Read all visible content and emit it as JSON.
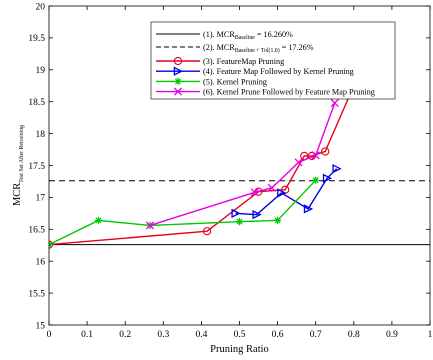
{
  "chart_data": {
    "type": "line",
    "title": "",
    "xlabel": "Pruning Ratio",
    "ylabel": "MCR",
    "ylabel_subscript": "Test Set After Retraining",
    "xlim": [
      0,
      1
    ],
    "ylim": [
      15,
      20
    ],
    "x_ticks": [
      "0",
      "0.1",
      "0.2",
      "0.3",
      "0.4",
      "0.5",
      "0.6",
      "0.7",
      "0.8",
      "0.9",
      "1"
    ],
    "y_ticks": [
      "15",
      "15.5",
      "16",
      "16.5",
      "17",
      "17.5",
      "18",
      "18.5",
      "19",
      "19.5",
      "20"
    ],
    "grid": false,
    "legend_position": "top-right",
    "reference_lines": [
      {
        "y": 16.26,
        "style": "solid",
        "color": "#000000",
        "legend_main": "(1). MCR",
        "legend_sub": "Baseline",
        "legend_tail": " = 16.260%"
      },
      {
        "y": 17.26,
        "style": "dashed",
        "color": "#000000",
        "legend_main": "(2). MCR",
        "legend_sub": "Baseline + Tol(1.0)",
        "legend_tail": " = 17.26%"
      }
    ],
    "series": [
      {
        "name": "(3). FeatureMap Pruning",
        "color": "#e8001c",
        "marker": "circle",
        "x": [
          0,
          0.415,
          0.55,
          0.62,
          0.67,
          0.69,
          0.725,
          0.8
        ],
        "y": [
          16.26,
          16.47,
          17.09,
          17.12,
          17.65,
          17.65,
          17.72,
          18.75
        ]
      },
      {
        "name": "(4). Feature Map Followed by Kernel Pruning",
        "color": "#0000e6",
        "marker": "triangle-right",
        "x": [
          0.49,
          0.545,
          0.61,
          0.68,
          0.73,
          0.755
        ],
        "y": [
          16.75,
          16.73,
          17.07,
          16.82,
          17.3,
          17.45
        ]
      },
      {
        "name": "(5). Kernel Pruning",
        "color": "#00c800",
        "marker": "asterisk",
        "x": [
          0,
          0.13,
          0.265,
          0.5,
          0.6,
          0.7
        ],
        "y": [
          16.26,
          16.64,
          16.56,
          16.62,
          16.64,
          17.27
        ]
      },
      {
        "name": "(6). Kernel Prune Followed by Feature Map Pruning",
        "color": "#e600e6",
        "marker": "x",
        "x": [
          0.265,
          0.54,
          0.585,
          0.655,
          0.7,
          0.75
        ],
        "y": [
          16.56,
          17.08,
          17.15,
          17.55,
          17.66,
          18.48
        ]
      }
    ]
  }
}
